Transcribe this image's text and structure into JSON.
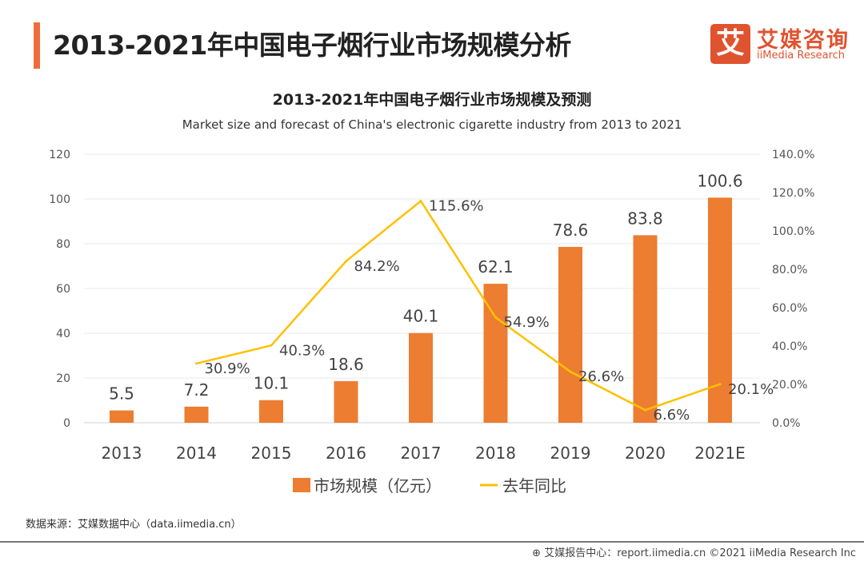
{
  "header": {
    "title": "2013-2021年中国电子烟行业市场规模分析"
  },
  "logo": {
    "mark": "艾",
    "cn": "艾媒咨询",
    "en": "iiMedia Research"
  },
  "chart_data": {
    "type": "bar+line",
    "title": "2013-2021年中国电子烟行业市场规模及预测",
    "subtitle": "Market size and forecast of China's electronic cigarette industry from 2013 to 2021",
    "categories": [
      "2013",
      "2014",
      "2015",
      "2016",
      "2017",
      "2018",
      "2019",
      "2020",
      "2021E"
    ],
    "series": [
      {
        "name": "市场规模（亿元）",
        "type": "bar",
        "axis": "left",
        "color": "#ed7d31",
        "values": [
          5.5,
          7.2,
          10.1,
          18.6,
          40.1,
          62.1,
          78.6,
          83.8,
          100.6
        ],
        "labels": [
          "5.5",
          "7.2",
          "10.1",
          "18.6",
          "40.1",
          "62.1",
          "78.6",
          "83.8",
          "100.6"
        ]
      },
      {
        "name": "去年同比",
        "type": "line",
        "axis": "right",
        "color": "#ffc000",
        "values": [
          null,
          30.9,
          40.3,
          84.2,
          115.6,
          54.9,
          26.6,
          6.6,
          20.1
        ],
        "labels": [
          "",
          "30.9%",
          "40.3%",
          "84.2%",
          "115.6%",
          "54.9%",
          "26.6%",
          "6.6%",
          "20.1%"
        ]
      }
    ],
    "left_axis": {
      "ylim": [
        0,
        120
      ],
      "ticks": [
        "0",
        "20",
        "40",
        "60",
        "80",
        "100",
        "120"
      ]
    },
    "right_axis": {
      "ylim": [
        0,
        140
      ],
      "ticks": [
        "0.0%",
        "20.0%",
        "40.0%",
        "60.0%",
        "80.0%",
        "100.0%",
        "120.0%",
        "140.0%"
      ]
    },
    "grid": true,
    "legend": "bottom"
  },
  "source": "数据来源：艾媒数据中心（data.iimedia.cn）",
  "footer": "艾媒报告中心：report.iimedia.cn  ©2021  iiMedia Research  Inc"
}
